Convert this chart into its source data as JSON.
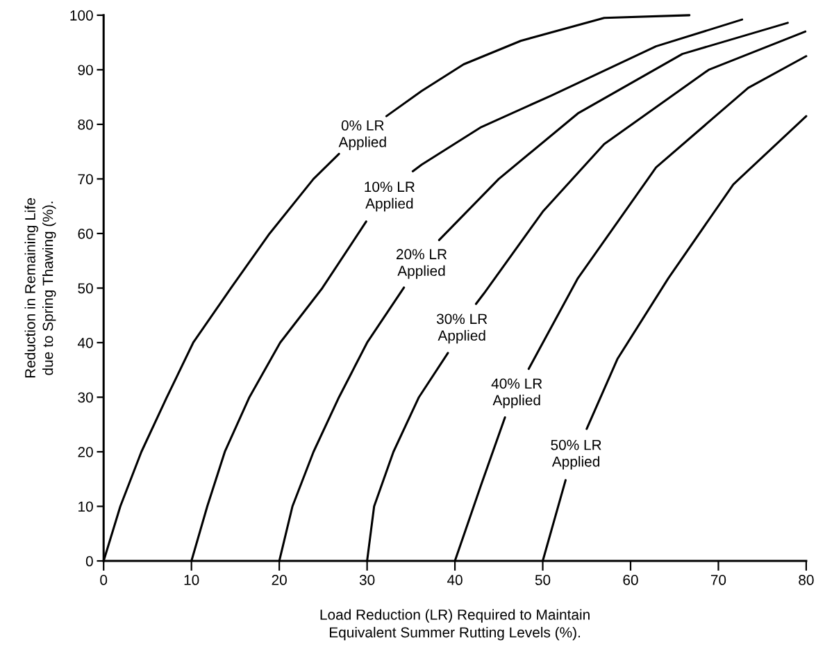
{
  "chart_data": {
    "type": "line",
    "xlabel": "Load Reduction (LR) Required to Maintain\nEquivalent Summer Rutting Levels (%).",
    "ylabel": "Reduction in Remaining Life\ndue to Spring Thawing (%).",
    "xlim": [
      0,
      80
    ],
    "ylim": [
      0,
      100
    ],
    "xticks": [
      0,
      10,
      20,
      30,
      40,
      50,
      60,
      70,
      80
    ],
    "yticks": [
      0,
      10,
      20,
      30,
      40,
      50,
      60,
      70,
      80,
      90,
      100
    ],
    "grid": false,
    "marker": "none",
    "line_style": "solid",
    "series": [
      {
        "color": "#000000",
        "x": [
          0,
          1.9,
          4.3,
          7.2,
          10.2,
          14.5,
          18.9,
          23.9,
          26.8,
          29.5,
          32.2,
          36.2,
          41,
          47.5,
          57,
          66.7
        ],
        "values": [
          0,
          10,
          20,
          30,
          40,
          50,
          60,
          70,
          74.6,
          null,
          81.5,
          86.1,
          91,
          95.3,
          99.5,
          100
        ]
      },
      {
        "color": "#000000",
        "x": [
          10,
          11.8,
          13.8,
          16.6,
          20.1,
          24.9,
          29.9,
          32.5,
          35.2,
          36.2,
          43,
          51,
          62.9,
          72.7
        ],
        "values": [
          0,
          10,
          20,
          30,
          40,
          50,
          62.2,
          null,
          71.4,
          72.6,
          79.5,
          85.3,
          94.3,
          99.2
        ]
      },
      {
        "color": "#000000",
        "x": [
          20,
          21.5,
          23.9,
          26.8,
          30,
          34.2,
          36,
          38.2,
          45,
          54,
          65.9,
          77.9
        ],
        "values": [
          0,
          10,
          20,
          30,
          40,
          50.1,
          null,
          58.8,
          70,
          82,
          92.9,
          98.6
        ]
      },
      {
        "color": "#000000",
        "x": [
          30,
          30.8,
          33,
          35.9,
          39.2,
          41,
          42.4,
          43.3,
          50,
          57,
          68.9,
          79.9
        ],
        "values": [
          0,
          10,
          20,
          30,
          38.1,
          null,
          47.1,
          49,
          64,
          76.4,
          90,
          97
        ]
      },
      {
        "color": "#000000",
        "x": [
          40,
          43,
          45.7,
          47,
          48.4,
          54,
          62.9,
          73.4,
          80
        ],
        "values": [
          0,
          14,
          26.3,
          null,
          35.2,
          51.8,
          72.1,
          86.7,
          92.5
        ]
      },
      {
        "color": "#000000",
        "x": [
          50,
          52.6,
          54,
          55,
          58.5,
          64.3,
          71.7,
          80
        ],
        "values": [
          0,
          14.8,
          null,
          24.2,
          37,
          51.8,
          69,
          81.5
        ]
      }
    ],
    "annotations": [
      "0% LR\nApplied",
      "10% LR\nApplied",
      "20% LR\nApplied",
      "30% LR\nApplied",
      "40% LR\nApplied",
      "50% LR\nApplied"
    ]
  }
}
